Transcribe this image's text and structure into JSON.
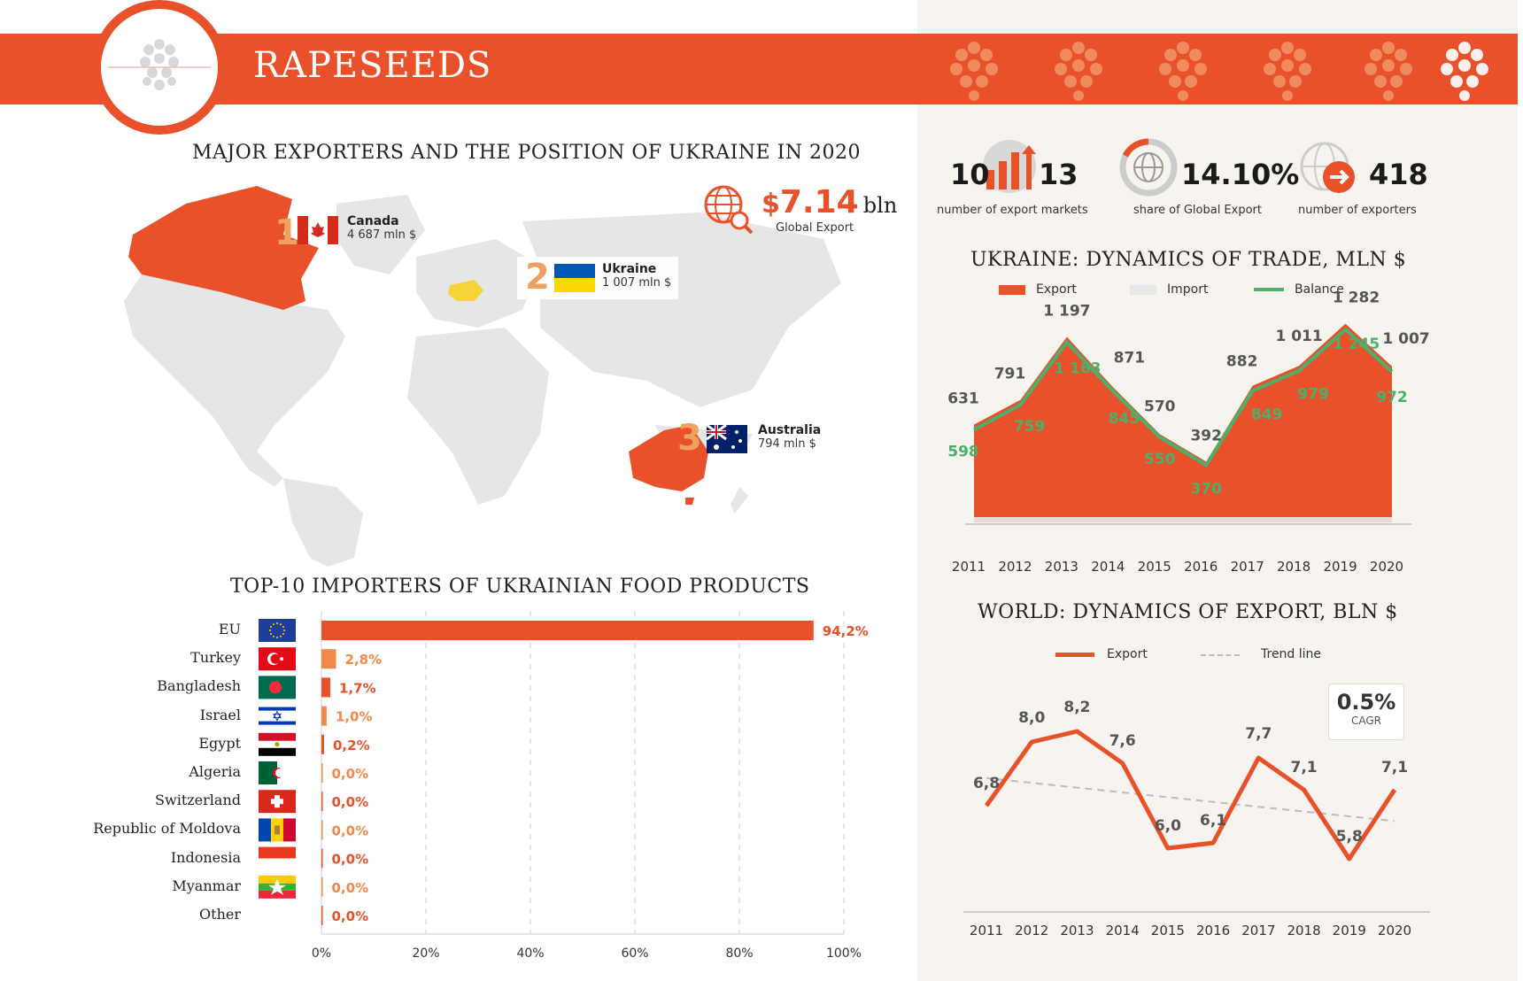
{
  "header": {
    "title": "RAPESEEDS"
  },
  "map_section": {
    "title": "MAJOR EXPORTERS AND THE POSITION OF UKRAINE IN 2020",
    "global_export": {
      "currency": "$",
      "value": "7.14",
      "unit": "bln",
      "label": "Global Export"
    },
    "exporters": [
      {
        "rank": "1",
        "name": "Canada",
        "value": "4 687 mln $"
      },
      {
        "rank": "2",
        "name": "Ukraine",
        "value": "1 007 mln $"
      },
      {
        "rank": "3",
        "name": "Australia",
        "value": "794 mln $"
      }
    ],
    "colors": {
      "highlight": "#e8512a",
      "ukraine": "#f5d33a",
      "land": "#e6e6e6"
    }
  },
  "stats": [
    {
      "value_a": "10",
      "value_b": "13",
      "label": "number of export markets"
    },
    {
      "value": "14.10%",
      "label": "share of Global Export"
    },
    {
      "value": "418",
      "label": "number of exporters"
    }
  ],
  "importers_section": {
    "title": "TOP-10 IMPORTERS OF UKRAINIAN FOOD PRODUCTS"
  },
  "ukraine_trade_section": {
    "title": "UKRAINE: DYNAMICS OF TRADE, MLN $",
    "legend": {
      "export": "Export",
      "import": "Import",
      "balance": "Balance"
    }
  },
  "world_export_section": {
    "title": "WORLD: DYNAMICS OF EXPORT, BLN $",
    "legend": {
      "export": "Export",
      "trend": "Trend line"
    },
    "cagr": {
      "value": "0.5%",
      "label": "CAGR"
    }
  },
  "chart_data": [
    {
      "type": "bar",
      "orientation": "horizontal",
      "title": "TOP-10 IMPORTERS OF UKRAINIAN FOOD PRODUCTS",
      "categories": [
        "EU",
        "Turkey",
        "Bangladesh",
        "Israel",
        "Egypt",
        "Algeria",
        "Switzerland",
        "Republic of Moldova",
        "Indonesia",
        "Myanmar",
        "Other"
      ],
      "values": [
        94.2,
        2.8,
        1.7,
        1.0,
        0.2,
        0.0,
        0.0,
        0.0,
        0.0,
        0.0,
        0.0
      ],
      "value_labels": [
        "94,2%",
        "2,8%",
        "1,7%",
        "1,0%",
        "0,2%",
        "0,0%",
        "0,0%",
        "0,0%",
        "0,0%",
        "0,0%",
        "0,0%"
      ],
      "xlim": [
        0,
        100
      ],
      "xticks": [
        "0%",
        "20%",
        "40%",
        "60%",
        "80%",
        "100%"
      ],
      "grid": "vertical dashed",
      "colors": [
        "#e8512a",
        "#f08a4b"
      ]
    },
    {
      "type": "area",
      "title": "UKRAINE: DYNAMICS OF TRADE, MLN $",
      "x": [
        "2011",
        "2012",
        "2013",
        "2014",
        "2015",
        "2016",
        "2017",
        "2018",
        "2019",
        "2020"
      ],
      "series": [
        {
          "name": "Export",
          "values": [
            631,
            791,
            1197,
            871,
            570,
            392,
            882,
            1011,
            1282,
            1007
          ],
          "labels": [
            "631",
            "791",
            "1 197",
            "871",
            "570",
            "392",
            "882",
            "1 011",
            "1 282",
            "1 007"
          ],
          "color": "#e8512a"
        },
        {
          "name": "Import",
          "values": [
            33,
            32,
            34,
            26,
            20,
            22,
            33,
            32,
            37,
            35
          ],
          "color": "#e8e8e8"
        },
        {
          "name": "Balance",
          "values": [
            598,
            759,
            1163,
            845,
            550,
            370,
            849,
            979,
            1245,
            972
          ],
          "labels": [
            "598",
            "759",
            "1 163",
            "845",
            "550",
            "370",
            "849",
            "979",
            "1 245",
            "972"
          ],
          "color": "#4caf6a"
        }
      ],
      "ylim": [
        0,
        1400
      ],
      "legend": "top"
    },
    {
      "type": "line",
      "title": "WORLD: DYNAMICS OF EXPORT, BLN $",
      "x": [
        "2011",
        "2012",
        "2013",
        "2014",
        "2015",
        "2016",
        "2017",
        "2018",
        "2019",
        "2020"
      ],
      "series": [
        {
          "name": "Export",
          "values": [
            6.8,
            8.0,
            8.2,
            7.6,
            6.0,
            6.1,
            7.7,
            7.1,
            5.8,
            7.1
          ],
          "labels": [
            "6,8",
            "8,0",
            "8,2",
            "7,6",
            "6,0",
            "6,1",
            "7,7",
            "7,1",
            "5,8",
            "7,1"
          ],
          "color": "#e8512a"
        },
        {
          "name": "Trend line",
          "values": [
            7.32,
            7.23,
            7.14,
            7.05,
            6.96,
            6.87,
            6.78,
            6.69,
            6.6,
            6.51
          ],
          "color": "#bbbbbb",
          "dashed": true
        }
      ],
      "ylim": [
        5.0,
        9.0
      ],
      "legend": "top"
    }
  ]
}
